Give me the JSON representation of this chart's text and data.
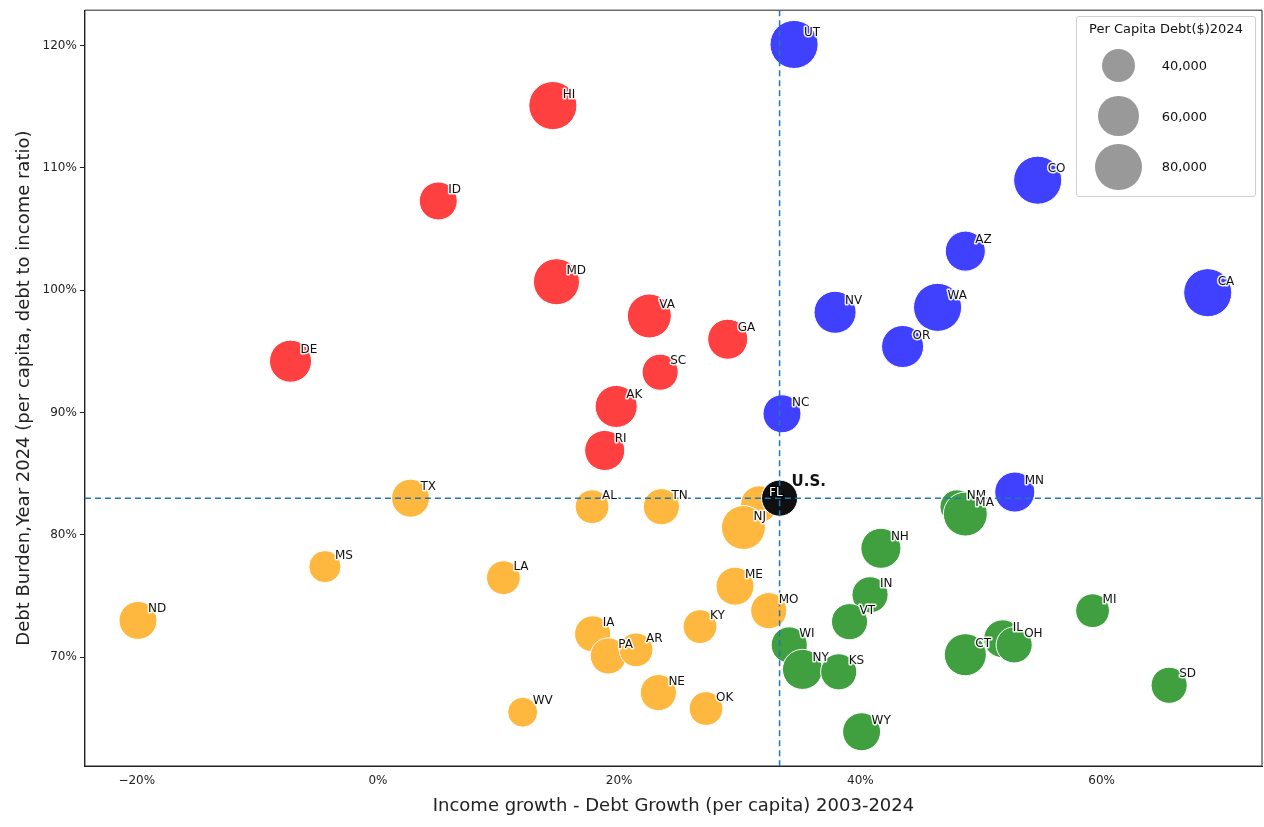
{
  "chart_data": {
    "type": "bubble",
    "xlabel": "Income growth - Debt Growth (per capita) 2003-2024",
    "ylabel": "Debt Burden,Year 2024 (per capita, debt to income ratio)",
    "legend_title": "Per Capita Debt($)2024",
    "size_legend": [
      {
        "value": 40000,
        "label": "40,000"
      },
      {
        "value": 60000,
        "label": "60,000"
      },
      {
        "value": 80000,
        "label": "80,000"
      }
    ],
    "grid": false,
    "xlim": [
      -24.3,
      73.3
    ],
    "ylim": [
      61.1,
      122.9
    ],
    "xticks": [
      {
        "value": -20,
        "label": "−20%"
      },
      {
        "value": 0,
        "label": "0%"
      },
      {
        "value": 20,
        "label": "20%"
      },
      {
        "value": 40,
        "label": "40%"
      },
      {
        "value": 60,
        "label": "60%"
      }
    ],
    "yticks": [
      {
        "value": 70,
        "label": "70%"
      },
      {
        "value": 80,
        "label": "80%"
      },
      {
        "value": 90,
        "label": "90%"
      },
      {
        "value": 100,
        "label": "100%"
      },
      {
        "value": 110,
        "label": "110%"
      },
      {
        "value": 120,
        "label": "120%"
      }
    ],
    "ref_lines": [
      {
        "axis": "x",
        "value": 33.3,
        "color": "#1f77b4",
        "line_style": "dashed"
      },
      {
        "axis": "y",
        "value": 83.0,
        "color": "#1f77b4",
        "line_style": "dashed"
      }
    ],
    "series": [
      {
        "color": "#ff4040",
        "x": [
          14.5,
          5.0,
          14.8,
          22.5,
          29.0,
          23.4,
          -7.25,
          19.75,
          18.8
        ],
        "values": [
          115.1,
          107.3,
          100.7,
          97.9,
          96.0,
          93.3,
          94.2,
          90.5,
          86.9
        ],
        "sizes": [
          85000,
          53000,
          78000,
          71000,
          59000,
          48000,
          65000,
          65000,
          59000
        ]
      },
      {
        "color": "#4040ff",
        "x": [
          34.5,
          54.7,
          48.7,
          68.8,
          37.9,
          46.4,
          43.5,
          33.5,
          52.8
        ],
        "values": [
          120.1,
          109.0,
          103.2,
          99.8,
          98.2,
          98.6,
          95.4,
          89.9,
          83.5
        ],
        "sizes": [
          85000,
          85000,
          59000,
          85000,
          65000,
          85000,
          65000,
          53000,
          59000
        ]
      },
      {
        "color": "#ffb83f",
        "x": [
          31.6,
          30.3,
          2.7,
          17.75,
          23.5,
          -4.4,
          10.4,
          -19.9,
          29.6,
          32.4,
          17.8,
          19.1,
          21.4,
          26.7,
          23.25,
          27.2,
          12.0
        ],
        "values": [
          82.5,
          80.6,
          83.0,
          82.3,
          82.3,
          77.4,
          76.5,
          73.0,
          75.8,
          73.8,
          71.9,
          70.1,
          70.6,
          72.5,
          67.1,
          65.8,
          65.5
        ],
        "sizes": [
          50000,
          71000,
          53000,
          42000,
          48000,
          38000,
          42000,
          53000,
          53000,
          48000,
          48000,
          48000,
          42000,
          42000,
          48000,
          42000,
          33000
        ]
      },
      {
        "color": "#40a040",
        "x": [
          48.0,
          48.7,
          41.7,
          40.8,
          39.1,
          59.25,
          34.1,
          35.2,
          38.2,
          51.8,
          52.75,
          48.7,
          65.6,
          40.1
        ],
        "values": [
          82.3,
          81.7,
          78.9,
          75.1,
          72.9,
          73.8,
          71.0,
          69.0,
          68.8,
          71.5,
          71.0,
          70.2,
          67.7,
          63.9
        ],
        "sizes": [
          42000,
          71000,
          59000,
          48000,
          48000,
          42000,
          48000,
          59000,
          48000,
          53000,
          48000,
          65000,
          48000,
          53000
        ]
      },
      {
        "color": "#101010",
        "x": [
          33.3
        ],
        "values": [
          83.0
        ],
        "sizes": [
          48000
        ]
      }
    ],
    "annotations": [
      {
        "text": "HI",
        "x": 14.5,
        "y": 115.1
      },
      {
        "text": "ID",
        "x": 5.0,
        "y": 107.3
      },
      {
        "text": "MD",
        "x": 14.8,
        "y": 100.7
      },
      {
        "text": "VA",
        "x": 22.5,
        "y": 97.9
      },
      {
        "text": "GA",
        "x": 29.0,
        "y": 96.0
      },
      {
        "text": "SC",
        "x": 23.4,
        "y": 93.3
      },
      {
        "text": "DE",
        "x": -7.25,
        "y": 94.2
      },
      {
        "text": "AK",
        "x": 19.75,
        "y": 90.5
      },
      {
        "text": "RI",
        "x": 18.8,
        "y": 86.9
      },
      {
        "text": "U.S.",
        "x": 33.3,
        "y": 83.0
      },
      {
        "text": "UT",
        "x": 34.5,
        "y": 120.1
      },
      {
        "text": "CO",
        "x": 54.7,
        "y": 109.0
      },
      {
        "text": "AZ",
        "x": 48.7,
        "y": 103.2
      },
      {
        "text": "CA",
        "x": 68.8,
        "y": 99.8
      },
      {
        "text": "NV",
        "x": 37.9,
        "y": 98.2
      },
      {
        "text": "WA",
        "x": 46.4,
        "y": 98.6
      },
      {
        "text": "OR",
        "x": 43.5,
        "y": 95.4
      },
      {
        "text": "NC",
        "x": 33.5,
        "y": 89.9
      },
      {
        "text": "MN",
        "x": 52.8,
        "y": 83.5
      },
      {
        "text": "FL",
        "x": 31.6,
        "y": 82.5
      },
      {
        "text": "NJ",
        "x": 30.3,
        "y": 80.6
      },
      {
        "text": "TX",
        "x": 2.7,
        "y": 83.0
      },
      {
        "text": "AL",
        "x": 17.75,
        "y": 82.3
      },
      {
        "text": "TN",
        "x": 23.5,
        "y": 82.3
      },
      {
        "text": "MS",
        "x": -4.4,
        "y": 77.4
      },
      {
        "text": "LA",
        "x": 10.4,
        "y": 76.5
      },
      {
        "text": "ND",
        "x": -19.9,
        "y": 73.0
      },
      {
        "text": "ME",
        "x": 29.6,
        "y": 75.8
      },
      {
        "text": "MO",
        "x": 32.4,
        "y": 73.8
      },
      {
        "text": "IA",
        "x": 17.8,
        "y": 71.9
      },
      {
        "text": "PA",
        "x": 19.1,
        "y": 70.1
      },
      {
        "text": "AR",
        "x": 21.4,
        "y": 70.6
      },
      {
        "text": "KY",
        "x": 26.7,
        "y": 72.5
      },
      {
        "text": "NE",
        "x": 23.25,
        "y": 67.1
      },
      {
        "text": "OK",
        "x": 27.2,
        "y": 65.8
      },
      {
        "text": "WV",
        "x": 12.0,
        "y": 65.5
      },
      {
        "text": "NM",
        "x": 48.0,
        "y": 82.3
      },
      {
        "text": "MA",
        "x": 48.7,
        "y": 81.7
      },
      {
        "text": "NH",
        "x": 41.7,
        "y": 78.9
      },
      {
        "text": "IN",
        "x": 40.8,
        "y": 75.1
      },
      {
        "text": "VT",
        "x": 39.1,
        "y": 72.9
      },
      {
        "text": "MI",
        "x": 59.25,
        "y": 73.8
      },
      {
        "text": "WI",
        "x": 34.1,
        "y": 71.0
      },
      {
        "text": "NY",
        "x": 35.2,
        "y": 69.0
      },
      {
        "text": "KS",
        "x": 38.2,
        "y": 68.8
      },
      {
        "text": "IL",
        "x": 51.8,
        "y": 71.5
      },
      {
        "text": "OH",
        "x": 52.75,
        "y": 71.0
      },
      {
        "text": "CT",
        "x": 48.7,
        "y": 70.2
      },
      {
        "text": "SD",
        "x": 65.6,
        "y": 67.7
      },
      {
        "text": "WY",
        "x": 40.1,
        "y": 63.9
      }
    ]
  }
}
